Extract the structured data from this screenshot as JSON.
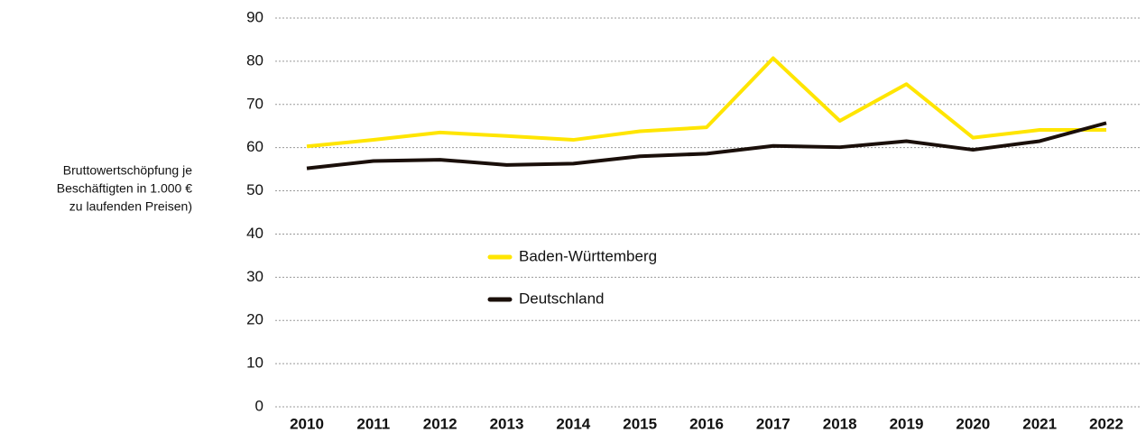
{
  "chart_data": {
    "type": "line",
    "ylabel": [
      "Bruttowertschöpfung je",
      "Beschäftigten in 1.000 €",
      "zu laufenden Preisen)"
    ],
    "categories": [
      "2010",
      "2011",
      "2012",
      "2013",
      "2014",
      "2015",
      "2016",
      "2017",
      "2018",
      "2019",
      "2020",
      "2021",
      "2022"
    ],
    "series": [
      {
        "name": "Baden-Württemberg",
        "color": "#ffe500",
        "values": [
          60.3,
          61.8,
          63.5,
          62.7,
          61.8,
          63.8,
          64.7,
          80.7,
          66.2,
          74.7,
          62.3,
          64.1,
          64.1
        ]
      },
      {
        "name": "Deutschland",
        "color": "#1a0f0a",
        "values": [
          55.2,
          56.9,
          57.2,
          56.0,
          56.3,
          58.0,
          58.6,
          60.4,
          60.1,
          61.5,
          59.5,
          61.5,
          65.7
        ]
      }
    ],
    "ylim": [
      0,
      90
    ],
    "yticks": [
      0,
      10,
      20,
      30,
      40,
      50,
      60,
      70,
      80,
      90
    ],
    "grid": true
  }
}
